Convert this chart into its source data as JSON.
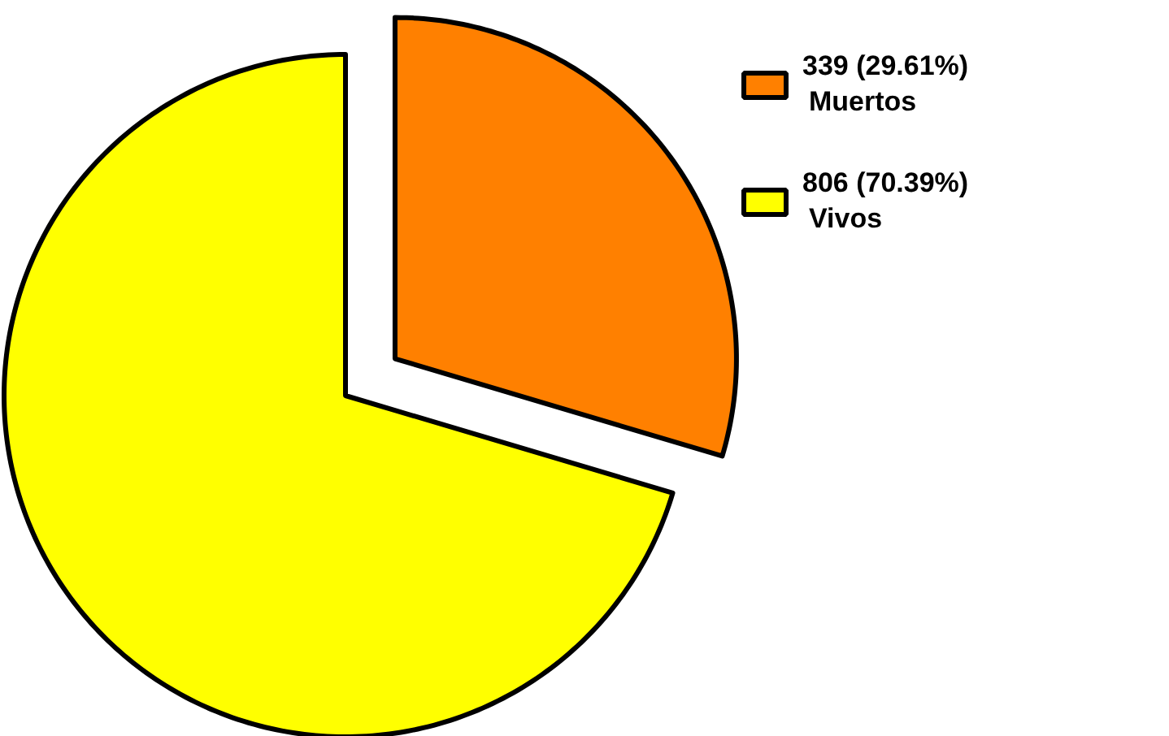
{
  "chart_data": {
    "type": "pie",
    "categories": [
      "Muertos",
      "Vivos"
    ],
    "values": [
      339,
      806
    ],
    "colors": [
      "#ff8000",
      "#ffff00"
    ],
    "value_labels": [
      "339 (29.61%)",
      "806 (70.39%)"
    ],
    "legend": "top right"
  }
}
